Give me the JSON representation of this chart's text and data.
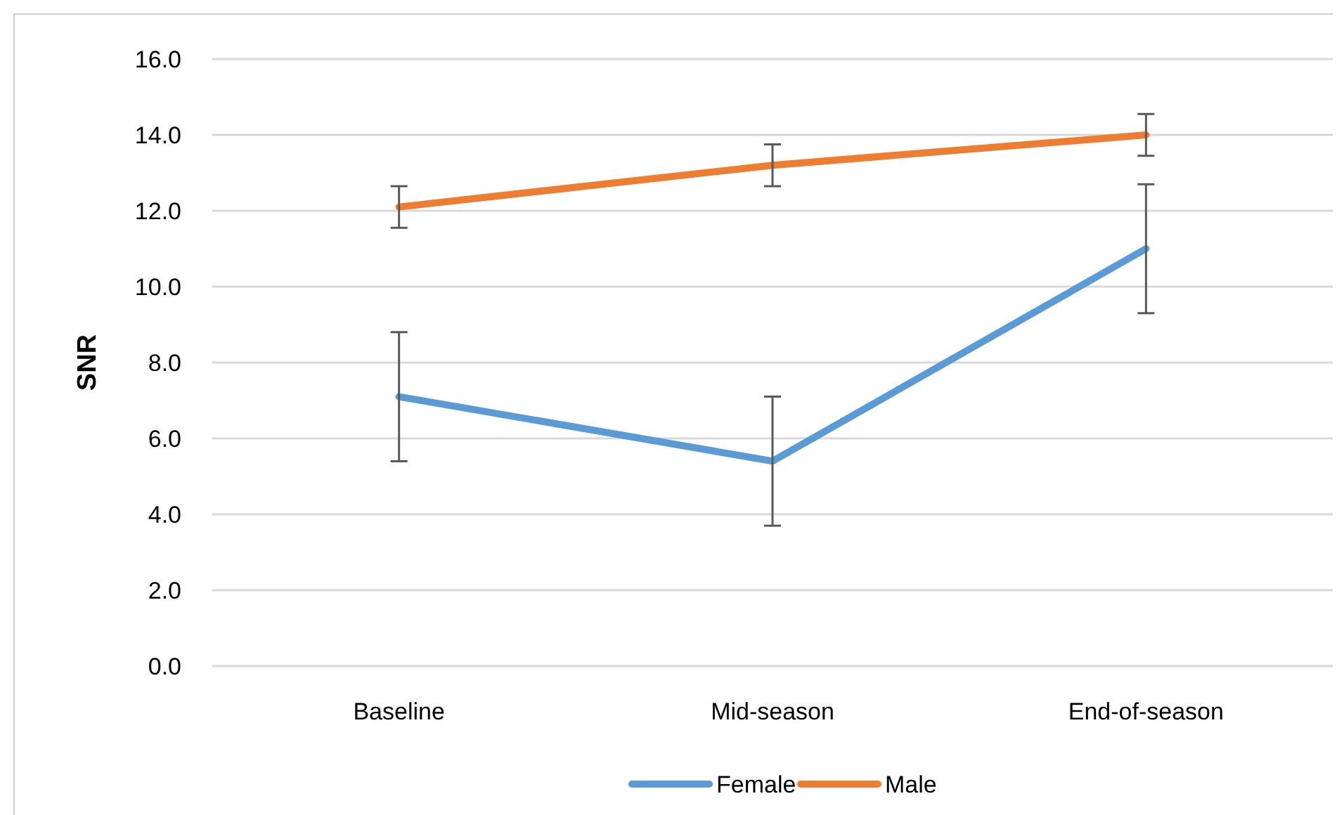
{
  "chart_data": {
    "type": "line",
    "ylabel": "SNR",
    "categories": [
      "Baseline",
      "Mid-season",
      "End-of-season"
    ],
    "series": [
      {
        "name": "Female",
        "color": "#5b9bd5",
        "values": [
          7.1,
          5.4,
          11.0
        ],
        "errors": [
          1.7,
          1.7,
          1.7
        ]
      },
      {
        "name": "Male",
        "color": "#ed7d31",
        "values": [
          12.1,
          13.2,
          14.0
        ],
        "errors": [
          0.55,
          0.55,
          0.55
        ]
      }
    ],
    "ylim": [
      0,
      16
    ],
    "yticks": [
      {
        "value": 0,
        "label": "0.0"
      },
      {
        "value": 2,
        "label": "2.0"
      },
      {
        "value": 4,
        "label": "4.0"
      },
      {
        "value": 6,
        "label": "6.0"
      },
      {
        "value": 8,
        "label": "8.0"
      },
      {
        "value": 10,
        "label": "10.0"
      },
      {
        "value": 12,
        "label": "12.0"
      },
      {
        "value": 14,
        "label": "14.0"
      },
      {
        "value": 16,
        "label": "16.0"
      }
    ],
    "grid": "y",
    "legend": "bottom",
    "marker": "none",
    "line_style": "solid"
  }
}
